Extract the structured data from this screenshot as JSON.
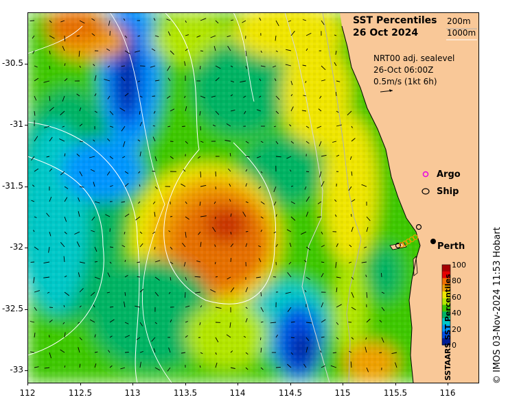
{
  "title_line1": "SST Percentiles",
  "title_line2": "26 Oct 2024",
  "contour_key": [
    "200m",
    "1000m"
  ],
  "current_info": [
    "NRT00 adj. sealevel",
    "26-Oct 06:00Z",
    "0.5m/s (1kt 6h)"
  ],
  "legend": {
    "argo": "Argo",
    "ship": "Ship"
  },
  "city": "Perth",
  "credit": "© IMOS 03-Nov-2024 11:53 Hobart",
  "colorbar": {
    "title": "SSTAARS SST Percentiles",
    "ticks": [
      "100",
      "80",
      "60",
      "40",
      "20",
      "0"
    ],
    "colors": [
      "#a50000",
      "#e60000",
      "#f07000",
      "#f0a000",
      "#f0e600",
      "#b4e600",
      "#3cc800",
      "#00b464",
      "#00c8c8",
      "#0096ff",
      "#0050e6",
      "#001e96"
    ]
  },
  "axes": {
    "lat_ticks": [
      "-30.5",
      "-31",
      "-31.5",
      "-32",
      "-32.5",
      "-33"
    ],
    "lon_ticks": [
      "112",
      "112.5",
      "113",
      "113.5",
      "114",
      "114.5",
      "115",
      "115.5",
      "116"
    ]
  },
  "colors": {
    "land": "#f9c898",
    "contour_200": "#b0b0b0",
    "contour_1000": "#ffffff"
  }
}
